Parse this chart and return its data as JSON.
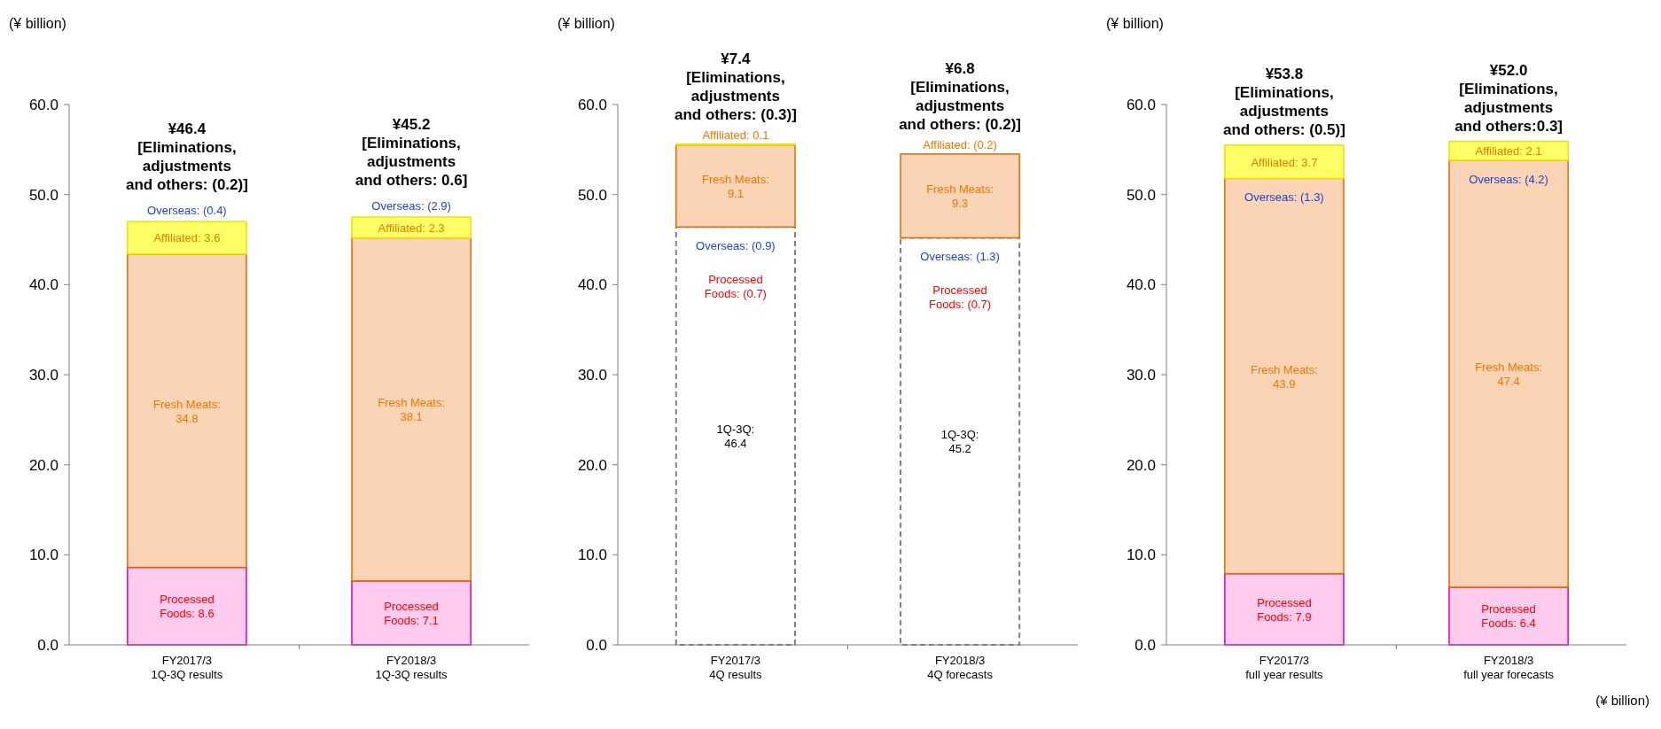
{
  "chart_data": [
    {
      "type": "bar",
      "stacked": true,
      "ylabel": "(¥ billion)",
      "categories": [
        "FY2017/3\n1Q-3Q results",
        "FY2018/3\n1Q-3Q results"
      ],
      "ylim": [
        0,
        60
      ],
      "yticks": [
        {
          "value": 0,
          "label": "0.0"
        },
        {
          "value": 10,
          "label": "10.0"
        },
        {
          "value": 20,
          "label": "20.0"
        },
        {
          "value": 30,
          "label": "30.0"
        },
        {
          "value": 40,
          "label": "40.0"
        },
        {
          "value": 50,
          "label": "50.0"
        },
        {
          "value": 60,
          "label": "60.0"
        }
      ],
      "series": [
        {
          "color": "#ffccf0",
          "values": [
            8.6,
            7.1
          ],
          "value_labels": [
            "Processed\nFoods: 8.6",
            "Processed\nFoods: 7.1"
          ]
        },
        {
          "color": "#fad4b4",
          "values": [
            34.8,
            38.1
          ],
          "value_labels": [
            "Fresh Meats:\n34.8",
            "Fresh Meats:\n38.1"
          ]
        },
        {
          "color": "#ffff66",
          "values": [
            3.6,
            2.3
          ],
          "value_labels": [
            "Affiliated: 3.6",
            "Affiliated: 2.3"
          ]
        }
      ],
      "annotations": [
        "¥46.4\n[Eliminations,\nadjustments\nand others: (0.2)]",
        "¥45.2\n[Eliminations,\nadjustments\nand others: 0.6]",
        "Overseas: (0.4)",
        "Overseas: (2.9)"
      ]
    },
    {
      "type": "bar",
      "stacked": true,
      "ylabel": "(¥ billion)",
      "categories": [
        "FY2017/3\n4Q results",
        "FY2018/3\n4Q forecasts"
      ],
      "ylim": [
        0,
        60
      ],
      "yticks": [
        {
          "value": 0,
          "label": "0.0"
        },
        {
          "value": 10,
          "label": "10.0"
        },
        {
          "value": 20,
          "label": "20.0"
        },
        {
          "value": 30,
          "label": "30.0"
        },
        {
          "value": 40,
          "label": "40.0"
        },
        {
          "value": 50,
          "label": "50.0"
        },
        {
          "value": 60,
          "label": "60.0"
        }
      ],
      "series": [
        {
          "color": "#ffffff",
          "line_style": "dashed",
          "values": [
            46.4,
            45.2
          ],
          "value_labels": [
            "1Q-3Q:\n46.4",
            "1Q-3Q:\n45.2"
          ]
        },
        {
          "color": "#fad4b4",
          "values": [
            9.1,
            9.3
          ],
          "value_labels": [
            "Fresh Meats:\n9.1",
            "Fresh Meats:\n9.3"
          ]
        },
        {
          "color": "#ffff66",
          "values": [
            0.1,
            null
          ],
          "value_labels": [
            "Affiliated: 0.1",
            "Affiliated: (0.2)"
          ]
        }
      ],
      "annotations": [
        "¥7.4\n[Eliminations,\nadjustments\nand others: (0.3)]",
        "¥6.8\n[Eliminations,\nadjustments\nand others: (0.2)]",
        "Overseas: (0.9)",
        "Overseas: (1.3)",
        "Processed\nFoods: (0.7)",
        "Processed\nFoods: (0.7)"
      ]
    },
    {
      "type": "bar",
      "stacked": true,
      "ylabel": "(¥ billion)",
      "xlabel": "(¥ billion)",
      "categories": [
        "FY2017/3\nfull year results",
        "FY2018/3\nfull year forecasts"
      ],
      "ylim": [
        0,
        60
      ],
      "yticks": [
        {
          "value": 0,
          "label": "0.0"
        },
        {
          "value": 10,
          "label": "10.0"
        },
        {
          "value": 20,
          "label": "20.0"
        },
        {
          "value": 30,
          "label": "30.0"
        },
        {
          "value": 40,
          "label": "40.0"
        },
        {
          "value": 50,
          "label": "50.0"
        },
        {
          "value": 60,
          "label": "60.0"
        }
      ],
      "series": [
        {
          "color": "#ffccf0",
          "values": [
            7.9,
            6.4
          ],
          "value_labels": [
            "Processed\nFoods: 7.9",
            "Processed\nFoods: 6.4"
          ]
        },
        {
          "color": "#fad4b4",
          "values": [
            43.9,
            47.4
          ],
          "value_labels": [
            "Fresh Meats:\n43.9",
            "Fresh Meats:\n47.4"
          ]
        },
        {
          "color": "#ffff66",
          "values": [
            3.7,
            2.1
          ],
          "value_labels": [
            "Affiliated: 3.7",
            "Affiliated: 2.1"
          ]
        }
      ],
      "annotations": [
        "¥53.8\n[Eliminations,\nadjustments\nand others: (0.5)]",
        "¥52.0\n[Eliminations,\nadjustments\nand others:0.3]",
        "Overseas: (1.3)",
        "Overseas: (4.2)"
      ]
    }
  ]
}
